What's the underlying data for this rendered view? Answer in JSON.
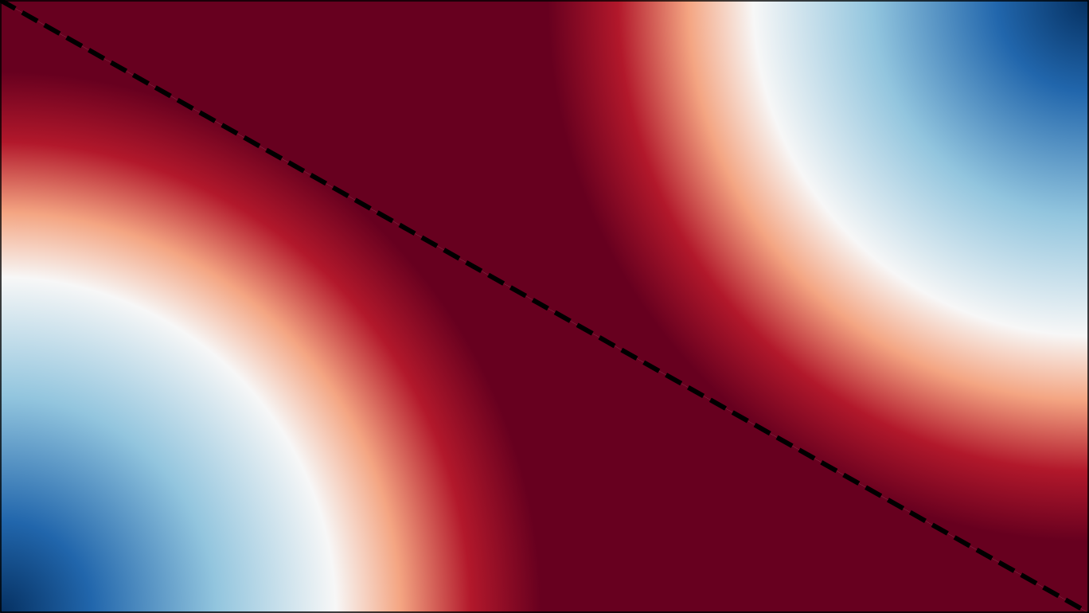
{
  "chart_data": {
    "type": "heatmap",
    "colormap": [
      "#053061",
      "#2166ac",
      "#92c5de",
      "#f7f7f7",
      "#f4a582",
      "#b2182b",
      "#67001f"
    ],
    "line_color": "#000000",
    "line_style": "dashed"
  }
}
